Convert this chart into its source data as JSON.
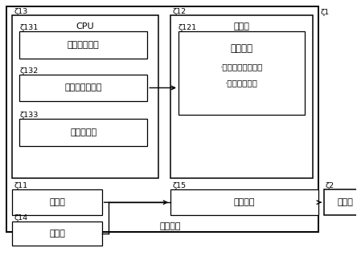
{
  "bg_color": "#ffffff",
  "title_bottom": "数控装置",
  "label_1": "1",
  "label_2": "2",
  "label_11": "11",
  "label_12": "12",
  "label_13": "13",
  "label_14": "14",
  "label_15": "15",
  "label_121": "121",
  "label_131": "131",
  "label_132": "132",
  "label_133": "133",
  "cpu_label": "CPU",
  "storage_label": "存储器",
  "box131_label": "二维码生成部",
  "box132_label": "加工条件决定部",
  "box133_label": "加工控制部",
  "box121_line1": "刀具信息",
  "box121_line2": "·能够使用刀具信息",
  "box121_line3": "·前端形状信息",
  "box11_label": "输入部",
  "box15_label": "通信接口",
  "box14_label": "显示部",
  "box2_label": "加工部"
}
